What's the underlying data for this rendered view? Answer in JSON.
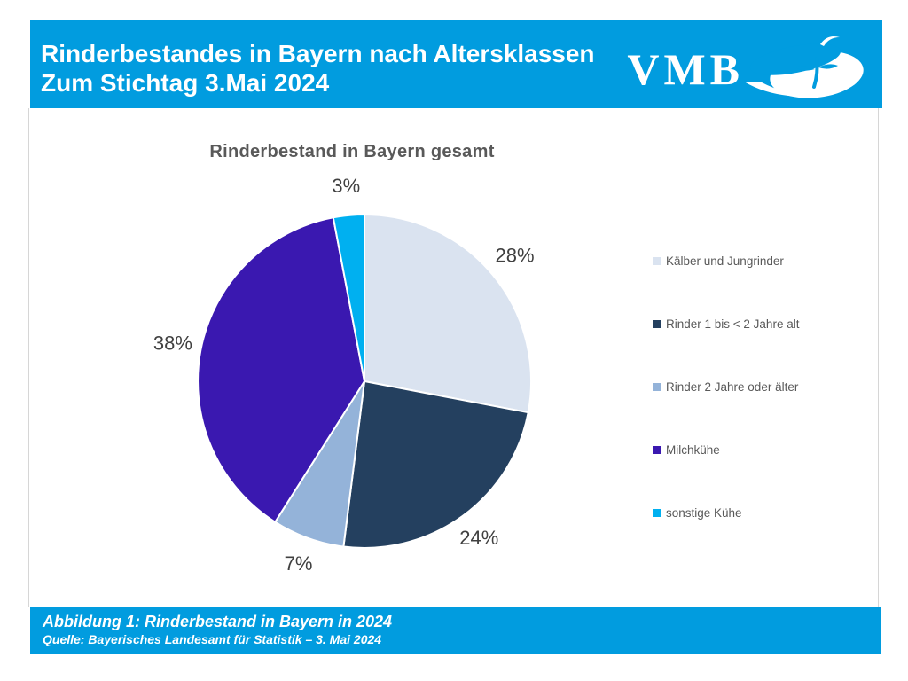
{
  "header": {
    "title_line1": "Rinderbestandes in Bayern nach Altersklassen",
    "title_line2": "Zum Stichtag 3.Mai 2024",
    "logo_text": "VMB",
    "bar_color": "#019cdf",
    "text_color": "#ffffff"
  },
  "chart_data": {
    "type": "pie",
    "title": "Rinderbestand in Bayern gesamt",
    "categories": [
      "Kälber und Jungrinder",
      "Rinder 1 bis < 2 Jahre alt",
      "Rinder 2 Jahre oder älter",
      "Milchkühe",
      "sonstige Kühe"
    ],
    "values": [
      28,
      24,
      7,
      38,
      3
    ],
    "data_labels": [
      "28%",
      "24%",
      "7%",
      "38%",
      "3%"
    ],
    "colors": [
      "#dae3f0",
      "#24405f",
      "#94b3d9",
      "#3a18b0",
      "#00b0f0"
    ],
    "start_angle_deg": 0,
    "direction": "clockwise",
    "legend_position": "right",
    "title_color": "#595959",
    "data_label_color": "#404040",
    "legend_text_color": "#595959"
  },
  "footer": {
    "caption": "Abbildung 1: Rinderbestand in Bayern in 2024",
    "source": "Quelle: Bayerisches Landesamt für Statistik – 3. Mai 2024",
    "bar_color": "#019cdf",
    "text_color": "#ffffff"
  }
}
